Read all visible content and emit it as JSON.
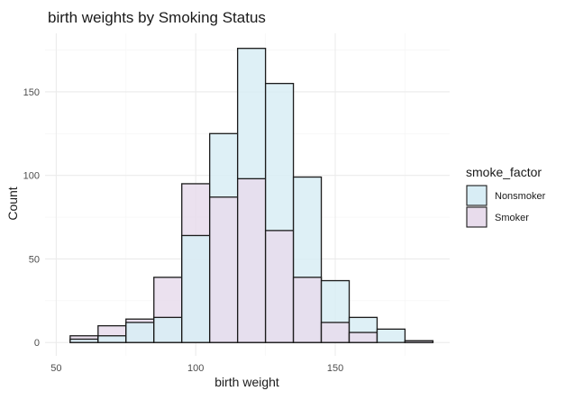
{
  "chart_data": {
    "type": "histogram",
    "title": "birth weights by Smoking Status",
    "xlabel": "birth weight",
    "ylabel": "Count",
    "xlim": [
      46,
      191
    ],
    "ylim": [
      -8,
      185
    ],
    "x_ticks": [
      50,
      100,
      150
    ],
    "y_ticks": [
      0,
      50,
      100,
      150
    ],
    "grid": true,
    "legend_title": "smoke_factor",
    "legend_position": "right",
    "bin_width": 10,
    "bin_starts": [
      55,
      65,
      75,
      85,
      95,
      105,
      115,
      125,
      135,
      145,
      155,
      165,
      175
    ],
    "series": [
      {
        "name": "Nonsmoker",
        "color": "#d8edf5",
        "values": [
          2,
          4,
          12,
          15,
          64,
          125,
          176,
          155,
          99,
          37,
          15,
          8,
          1
        ]
      },
      {
        "name": "Smoker",
        "color": "#e8dcec",
        "values": [
          4,
          10,
          14,
          39,
          95,
          87,
          98,
          67,
          39,
          12,
          6,
          0,
          1
        ]
      }
    ]
  }
}
